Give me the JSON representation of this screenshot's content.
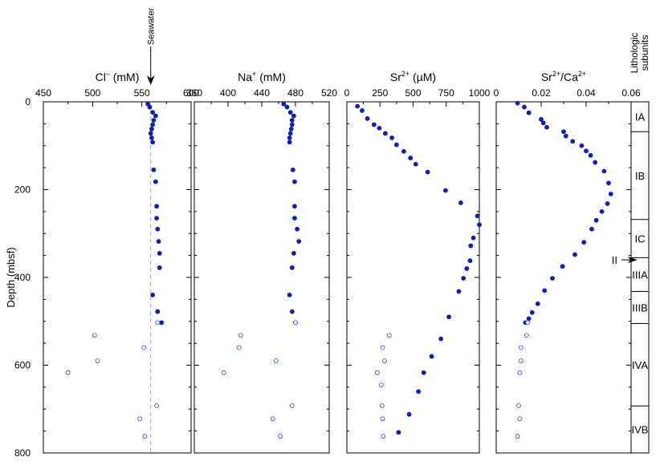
{
  "figure": {
    "y_axis_label": "Depth (mbsf)",
    "y_ticks": [
      0,
      200,
      400,
      600,
      800
    ],
    "seawater_label": "Seawater",
    "lithologic_header_line1": "Lithologic",
    "lithologic_header_line2": "subunits",
    "subunit_II_label": "II",
    "colors": {
      "filled": "#0d1fb8",
      "open": "#3347e0",
      "seawater_line": "#aaaaaa"
    }
  },
  "lithologic_subunits": {
    "labels": [
      "IA",
      "IB",
      "IC",
      "IIIA",
      "IIIB",
      "IVA",
      "IVB"
    ],
    "boundaries_mbsf": [
      0,
      68,
      268,
      355,
      432,
      505,
      693,
      800
    ],
    "unit_II_depth_mbsf": 360
  },
  "chart_data": [
    {
      "type": "scatter",
      "id": "cl",
      "xlabel_main": "Cl",
      "xlabel_sup": "–",
      "xlabel_unit": " (mM)",
      "xlim": [
        450,
        600
      ],
      "xticks": [
        450,
        500,
        550,
        600
      ],
      "ylim": [
        800,
        0
      ],
      "seawater_value": 559,
      "series": [
        {
          "marker": "filled",
          "x": [
            556,
            558,
            561,
            564,
            562,
            561,
            560,
            559,
            560,
            561,
            562,
            564,
            565,
            565,
            566,
            567,
            568,
            568,
            561,
            566,
            570
          ],
          "y": [
            5,
            12,
            24,
            32,
            42,
            52,
            62,
            72,
            82,
            92,
            155,
            182,
            238,
            265,
            290,
            318,
            345,
            378,
            440,
            478,
            503
          ]
        },
        {
          "marker": "open",
          "x": [
            566,
            502,
            552,
            505,
            475,
            565,
            548,
            553
          ],
          "y": [
            503,
            532,
            560,
            590,
            617,
            692,
            722,
            762
          ]
        }
      ]
    },
    {
      "type": "scatter",
      "id": "na",
      "xlabel_main": "Na",
      "xlabel_sup": "+",
      "xlabel_unit": " (mM)",
      "xlim": [
        360,
        520
      ],
      "xticks": [
        360,
        400,
        440,
        480,
        520
      ],
      "ylim": [
        800,
        0
      ],
      "series": [
        {
          "marker": "filled",
          "x": [
            466,
            470,
            474,
            478,
            476,
            476,
            475,
            474,
            473,
            473,
            477,
            479,
            479,
            479,
            482,
            484,
            478,
            476,
            473,
            476,
            480
          ],
          "y": [
            5,
            12,
            24,
            32,
            42,
            52,
            62,
            72,
            82,
            92,
            155,
            182,
            238,
            265,
            290,
            318,
            345,
            378,
            440,
            478,
            503
          ]
        },
        {
          "marker": "open",
          "x": [
            480,
            415,
            413,
            457,
            395,
            476,
            453,
            462
          ],
          "y": [
            503,
            532,
            560,
            590,
            617,
            692,
            722,
            762
          ]
        }
      ]
    },
    {
      "type": "scatter",
      "id": "sr",
      "xlabel_main": "Sr",
      "xlabel_sup": "2+",
      "xlabel_unit": " (µM)",
      "xlim": [
        0,
        1000
      ],
      "xticks": [
        0,
        250,
        500,
        750,
        1000
      ],
      "ylim": [
        800,
        0
      ],
      "series": [
        {
          "marker": "filled",
          "x": [
            80,
            115,
            155,
            205,
            245,
            290,
            340,
            375,
            430,
            480,
            520,
            610,
            745,
            860,
            985,
            1000,
            955,
            935,
            930,
            905,
            880,
            845,
            770,
            710,
            640,
            580,
            540,
            470,
            390
          ],
          "y": [
            10,
            20,
            38,
            52,
            60,
            72,
            82,
            98,
            113,
            128,
            142,
            160,
            202,
            230,
            260,
            280,
            310,
            328,
            362,
            380,
            402,
            432,
            490,
            540,
            580,
            617,
            660,
            712,
            753
          ]
        },
        {
          "marker": "open",
          "x": [
            320,
            270,
            285,
            230,
            260,
            265,
            270,
            275
          ],
          "y": [
            532,
            560,
            590,
            617,
            645,
            692,
            722,
            762
          ]
        }
      ]
    },
    {
      "type": "scatter",
      "id": "srca",
      "xlabel_main": "Sr",
      "xlabel_sup": "2+",
      "xlabel_unit": "/Ca",
      "xlabel_sup2": "2+",
      "xlim": [
        0,
        0.06
      ],
      "xticks": [
        0,
        0.02,
        0.04,
        0.06
      ],
      "xtick_labels": [
        "0",
        "0.02",
        "0.04",
        "0.06"
      ],
      "ylim": [
        800,
        0
      ],
      "series": [
        {
          "marker": "filled",
          "x": [
            0.0095,
            0.0125,
            0.0145,
            0.02,
            0.021,
            0.0225,
            0.03,
            0.031,
            0.034,
            0.038,
            0.04,
            0.042,
            0.044,
            0.048,
            0.05,
            0.051,
            0.0495,
            0.047,
            0.0445,
            0.0425,
            0.039,
            0.035,
            0.0295,
            0.025,
            0.0215,
            0.0185,
            0.016,
            0.0145,
            0.013
          ],
          "y": [
            3,
            12,
            25,
            40,
            48,
            58,
            68,
            78,
            90,
            100,
            112,
            122,
            138,
            158,
            185,
            210,
            232,
            250,
            270,
            290,
            320,
            348,
            375,
            402,
            430,
            460,
            480,
            494,
            503
          ]
        },
        {
          "marker": "open",
          "x": [
            0.014,
            0.0135,
            0.011,
            0.011,
            0.0105,
            0.01,
            0.0105,
            0.0095
          ],
          "y": [
            503,
            532,
            560,
            590,
            617,
            692,
            722,
            762
          ]
        }
      ]
    }
  ]
}
